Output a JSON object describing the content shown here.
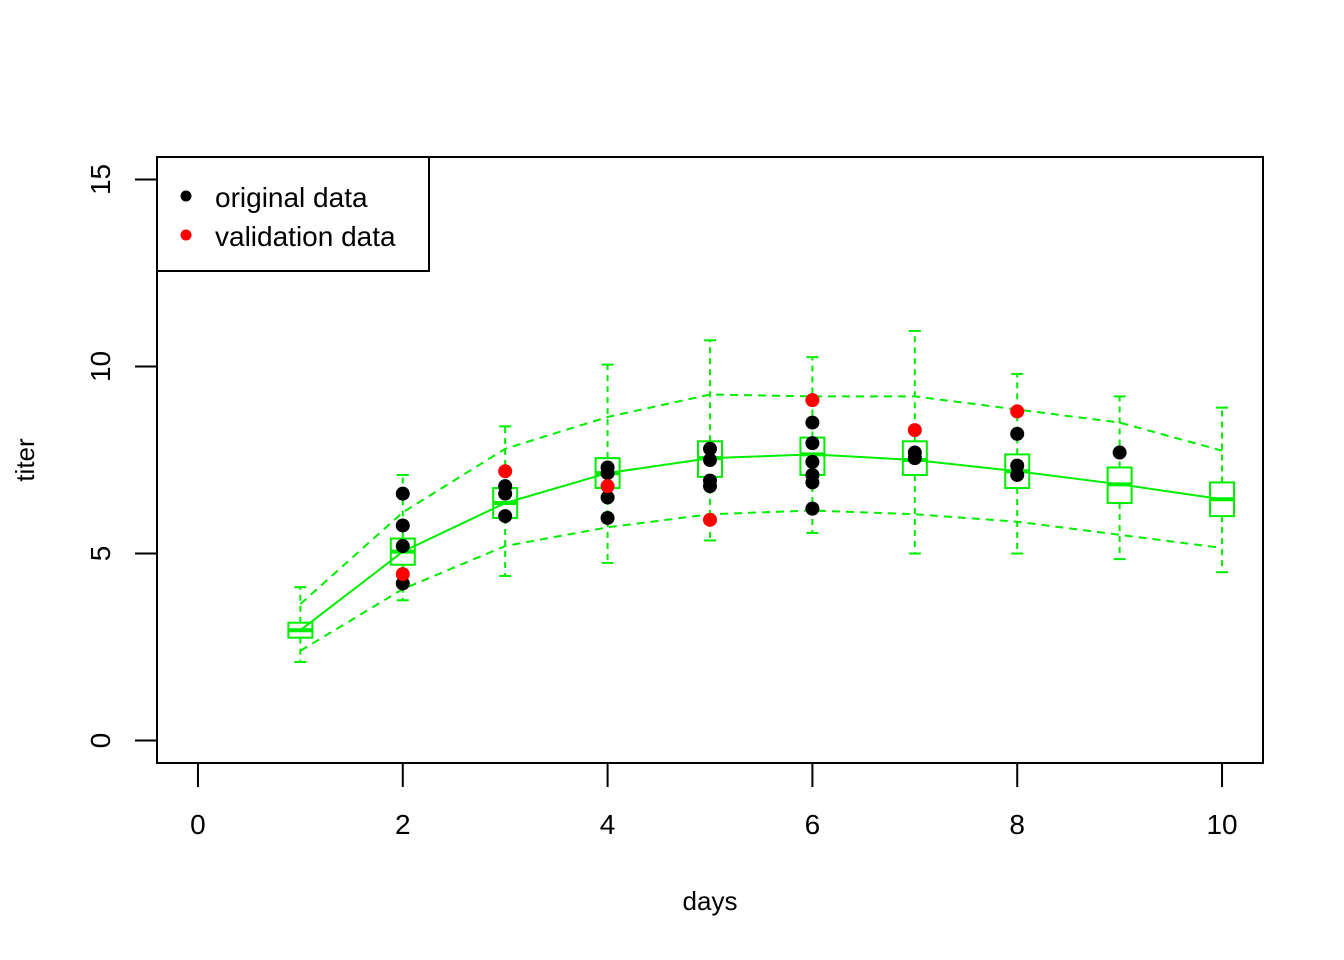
{
  "chart_data": {
    "type": "scatter",
    "xlabel": "days",
    "ylabel": "titer",
    "xlim": [
      -0.4,
      10.4
    ],
    "ylim": [
      -0.6,
      15.6
    ],
    "x_ticks": [
      0,
      2,
      4,
      6,
      8,
      10
    ],
    "y_ticks": [
      0,
      5,
      10,
      15
    ],
    "grid": false,
    "legend": {
      "position": "top-left",
      "entries": [
        {
          "label": "original data",
          "color": "#000000"
        },
        {
          "label": "validation data",
          "color": "#ff0000"
        }
      ]
    },
    "series": [
      {
        "name": "original data",
        "color": "#000000",
        "points": [
          {
            "x": 2,
            "y": 6.6
          },
          {
            "x": 2,
            "y": 5.75
          },
          {
            "x": 2,
            "y": 5.2
          },
          {
            "x": 2,
            "y": 4.2
          },
          {
            "x": 3,
            "y": 6.8
          },
          {
            "x": 3,
            "y": 6.6
          },
          {
            "x": 3,
            "y": 6.0
          },
          {
            "x": 4,
            "y": 7.3
          },
          {
            "x": 4,
            "y": 7.15
          },
          {
            "x": 4,
            "y": 6.5
          },
          {
            "x": 4,
            "y": 5.95
          },
          {
            "x": 5,
            "y": 7.8
          },
          {
            "x": 5,
            "y": 7.5
          },
          {
            "x": 5,
            "y": 6.95
          },
          {
            "x": 5,
            "y": 6.8
          },
          {
            "x": 6,
            "y": 8.5
          },
          {
            "x": 6,
            "y": 7.95
          },
          {
            "x": 6,
            "y": 7.45
          },
          {
            "x": 6,
            "y": 7.1
          },
          {
            "x": 6,
            "y": 6.9
          },
          {
            "x": 6,
            "y": 6.2
          },
          {
            "x": 7,
            "y": 7.7
          },
          {
            "x": 7,
            "y": 7.55
          },
          {
            "x": 8,
            "y": 8.2
          },
          {
            "x": 8,
            "y": 7.35
          },
          {
            "x": 8,
            "y": 7.1
          },
          {
            "x": 9,
            "y": 7.7
          }
        ]
      },
      {
        "name": "validation data",
        "color": "#ff0000",
        "points": [
          {
            "x": 2,
            "y": 4.45
          },
          {
            "x": 3,
            "y": 7.2
          },
          {
            "x": 4,
            "y": 6.8
          },
          {
            "x": 5,
            "y": 5.9
          },
          {
            "x": 6,
            "y": 9.1
          },
          {
            "x": 7,
            "y": 8.3
          },
          {
            "x": 8,
            "y": 8.8
          }
        ]
      }
    ],
    "prediction": {
      "color": "#00ee00",
      "days": [
        1,
        2,
        3,
        4,
        5,
        6,
        7,
        8,
        9,
        10
      ],
      "median": [
        2.95,
        5.05,
        6.35,
        7.15,
        7.55,
        7.65,
        7.5,
        7.2,
        6.85,
        6.45
      ],
      "box_low": [
        2.75,
        4.7,
        5.95,
        6.75,
        7.05,
        7.1,
        7.1,
        6.75,
        6.35,
        6.0
      ],
      "box_high": [
        3.15,
        5.4,
        6.75,
        7.55,
        8.0,
        8.1,
        8.0,
        7.65,
        7.3,
        6.9
      ],
      "lower_band": [
        2.4,
        4.05,
        5.2,
        5.7,
        6.05,
        6.15,
        6.05,
        5.85,
        5.5,
        5.15
      ],
      "upper_band": [
        3.65,
        6.1,
        7.8,
        8.65,
        9.25,
        9.2,
        9.2,
        8.85,
        8.5,
        7.75
      ],
      "whisker_low": [
        2.1,
        3.75,
        4.4,
        4.75,
        5.35,
        5.55,
        5.0,
        5.0,
        4.85,
        4.5
      ],
      "whisker_high": [
        4.1,
        7.1,
        8.4,
        10.05,
        10.7,
        10.25,
        10.95,
        9.8,
        9.2,
        8.9
      ]
    }
  }
}
